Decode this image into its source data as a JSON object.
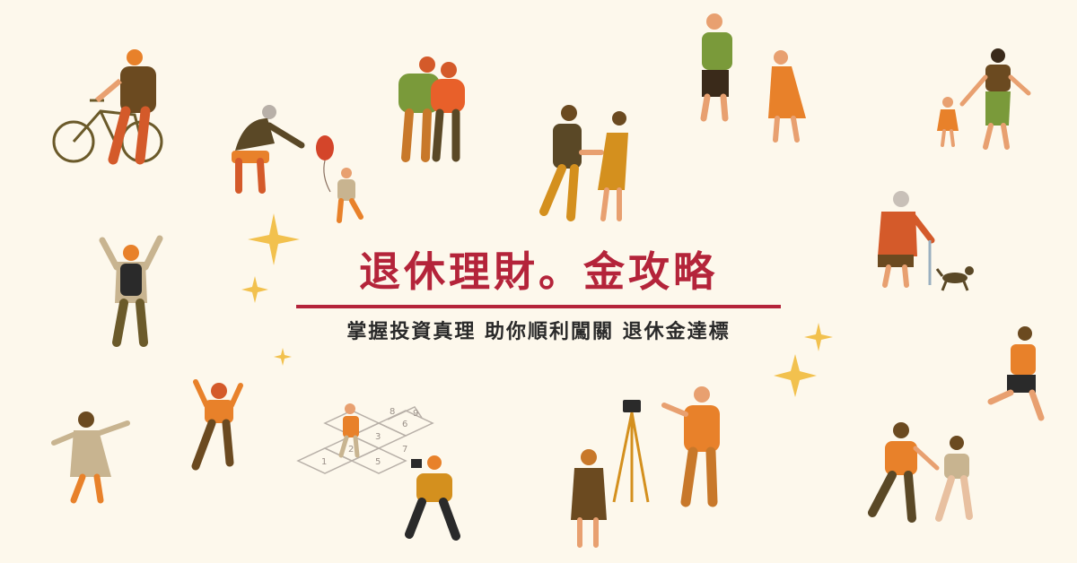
{
  "banner": {
    "title": "退休理財。金攻略",
    "subtitle": "掌握投資真理 助你順利闖關 退休金達標"
  },
  "colors": {
    "background": "#fdf8ec",
    "title": "#b4243a",
    "subtitle": "#2a2a2a",
    "orange": "#e8812a",
    "mustard": "#d4901e",
    "olive": "#6b5a2a",
    "brown": "#7a4a1e",
    "green": "#7a9a3a",
    "sparkle": "#f2c14e"
  },
  "hopscotch": [
    "1",
    "2",
    "3",
    "4",
    "5",
    "6",
    "7",
    "8",
    "9"
  ]
}
